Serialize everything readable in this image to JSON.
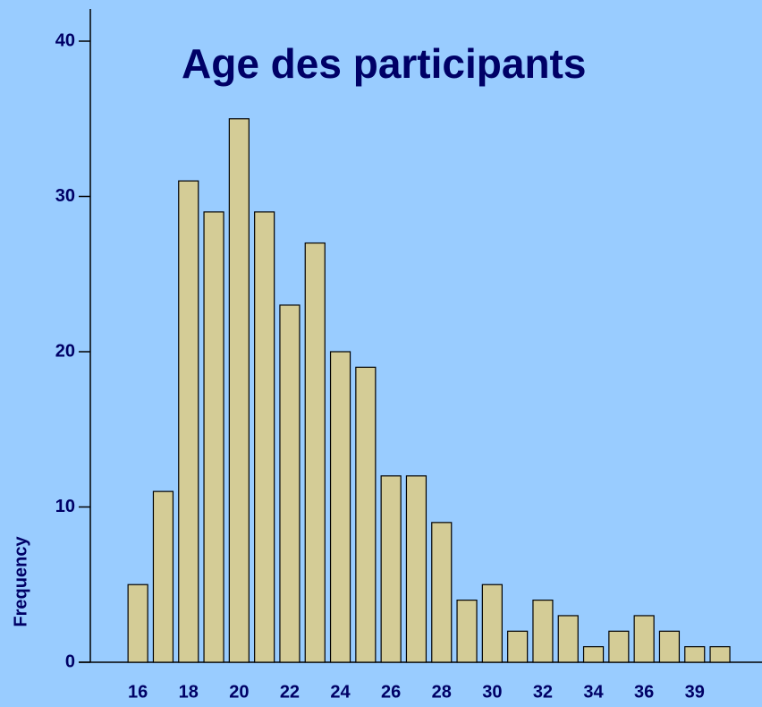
{
  "chart_data": {
    "type": "bar",
    "title": "Age des participants",
    "y_label": "Frequency",
    "categories": [
      "16",
      null,
      "18",
      null,
      "20",
      null,
      "22",
      null,
      "24",
      null,
      "26",
      null,
      "28",
      null,
      "30",
      null,
      "32",
      null,
      "34",
      null,
      "36",
      null,
      "39",
      null
    ],
    "values": [
      5,
      11,
      31,
      29,
      35,
      29,
      23,
      27,
      20,
      19,
      12,
      12,
      9,
      4,
      5,
      2,
      4,
      3,
      1,
      2,
      3,
      2,
      1,
      1
    ],
    "color": "#d4cc96",
    "ylim": [
      0,
      40
    ],
    "yticks": [
      0,
      10,
      20,
      30,
      40
    ],
    "grid": false
  }
}
